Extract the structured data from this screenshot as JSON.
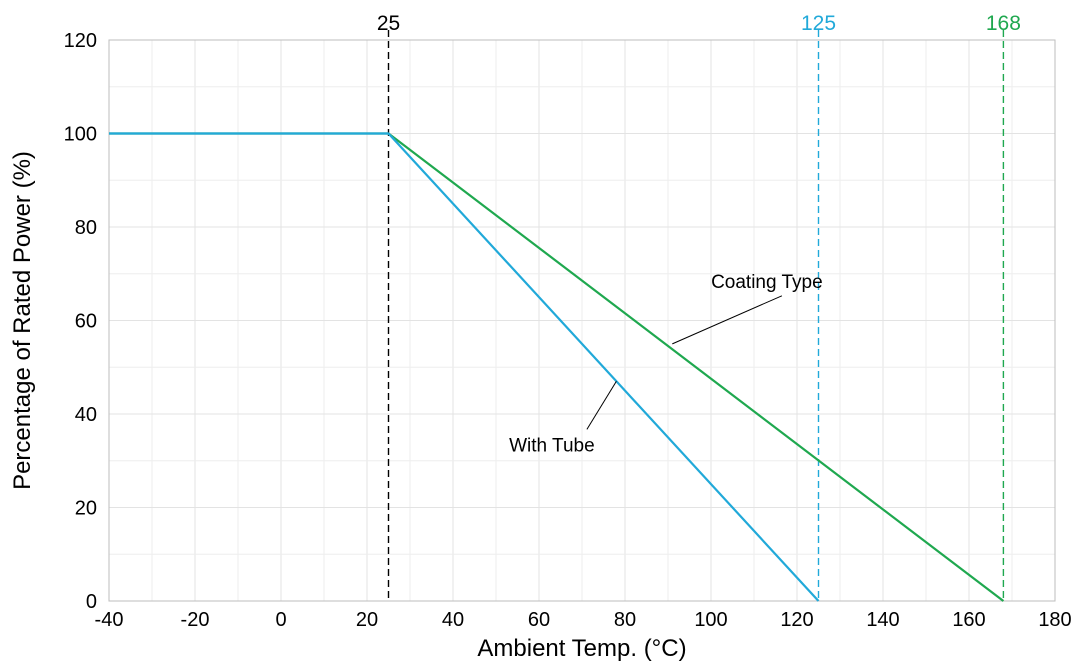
{
  "chart_data": {
    "type": "line",
    "xlabel": "Ambient Temp. (°C)",
    "ylabel": "Percentage of Rated Power (%)",
    "xlim": [
      -40,
      180
    ],
    "ylim": [
      0,
      120
    ],
    "x_ticks": [
      -40,
      -20,
      0,
      20,
      40,
      60,
      80,
      100,
      120,
      140,
      160,
      180
    ],
    "y_ticks": [
      0,
      20,
      40,
      60,
      80,
      100,
      120
    ],
    "x_tick_labels": [
      "-40",
      "-20",
      "0",
      "20",
      "40",
      "60",
      "80",
      "100",
      "120",
      "140",
      "160",
      "180"
    ],
    "y_tick_labels": [
      "0",
      "20",
      "40",
      "60",
      "80",
      "100",
      "120"
    ],
    "grid": true,
    "series": [
      {
        "name": "Coating Type",
        "color": "#1fa84f",
        "points": [
          [
            -40,
            100
          ],
          [
            25,
            100
          ],
          [
            168,
            0
          ]
        ]
      },
      {
        "name": "With Tube",
        "color": "#21a9d9",
        "points": [
          [
            -40,
            100
          ],
          [
            25,
            100
          ],
          [
            125,
            0
          ]
        ]
      }
    ],
    "reference_lines": [
      {
        "x": 25,
        "label": "25",
        "color": "#000000"
      },
      {
        "x": 125,
        "label": "125",
        "color": "#21a9d9"
      },
      {
        "x": 168,
        "label": "168",
        "color": "#1fa84f"
      }
    ],
    "annotations": [
      {
        "text": "Coating Type",
        "target": [
          91,
          55
        ],
        "text_at": [
          113,
          67
        ]
      },
      {
        "text": "With Tube",
        "target": [
          78,
          47
        ],
        "text_at": [
          63,
          32
        ]
      }
    ]
  }
}
